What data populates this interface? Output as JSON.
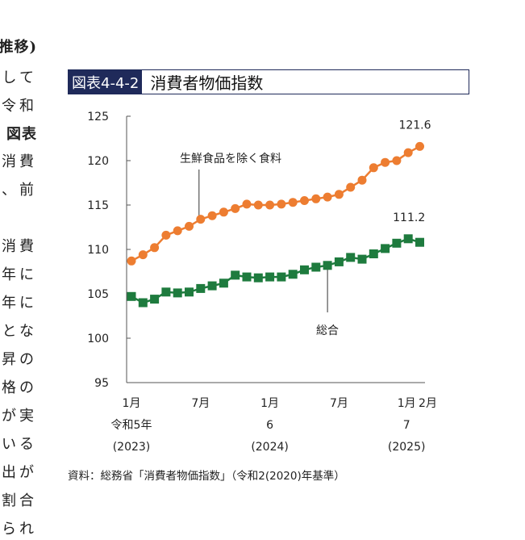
{
  "body_text_fragments": [
    "推移)",
    "して",
    "令和",
    "図表",
    "消費",
    "、前",
    "消費",
    "年に",
    "年に",
    "とな",
    "昇の",
    "格の",
    "が実",
    "いる",
    "出が",
    "割合",
    "られ"
  ],
  "figure": {
    "label": "図表4-4-2",
    "title": "消費者物価指数",
    "source": "資料：総務省「消費者物価指数」（令和2(2020)年基準）"
  },
  "chart_data": {
    "type": "line",
    "title": "消費者物価指数",
    "xlabel": "",
    "ylabel": "",
    "ylim": [
      95,
      125
    ],
    "yticks": [
      95,
      100,
      105,
      110,
      115,
      120,
      125
    ],
    "x": [
      "2023-01",
      "2023-02",
      "2023-03",
      "2023-04",
      "2023-05",
      "2023-06",
      "2023-07",
      "2023-08",
      "2023-09",
      "2023-10",
      "2023-11",
      "2023-12",
      "2024-01",
      "2024-02",
      "2024-03",
      "2024-04",
      "2024-05",
      "2024-06",
      "2024-07",
      "2024-08",
      "2024-09",
      "2024-10",
      "2024-11",
      "2024-12",
      "2025-01",
      "2025-02"
    ],
    "xtick_labels": [
      {
        "x": "2023-01",
        "lines": [
          "1月",
          "令和5年",
          "(2023)"
        ]
      },
      {
        "x": "2023-07",
        "lines": [
          "7月"
        ]
      },
      {
        "x": "2024-01",
        "lines": [
          "1月",
          "6",
          "(2024)"
        ]
      },
      {
        "x": "2024-07",
        "lines": [
          "7月"
        ]
      },
      {
        "x": "2025-01",
        "lines": [
          "1月",
          "7",
          "(2025)"
        ]
      },
      {
        "x": "2025-02",
        "lines": [
          "2月"
        ]
      }
    ],
    "grid": false,
    "series": [
      {
        "name": "生鮮食品を除く食料",
        "color": "#ed7d31",
        "marker": "circle",
        "values": [
          108.7,
          109.4,
          110.2,
          111.6,
          112.1,
          112.6,
          113.4,
          113.8,
          114.2,
          114.6,
          115.1,
          115.0,
          115.0,
          115.1,
          115.3,
          115.5,
          115.7,
          115.9,
          116.2,
          117.0,
          117.8,
          119.2,
          119.8,
          120.0,
          120.9,
          121.6
        ],
        "annotation": "121.6"
      },
      {
        "name": "総合",
        "color": "#1e7b3e",
        "marker": "square",
        "values": [
          104.7,
          104.0,
          104.4,
          105.2,
          105.1,
          105.2,
          105.6,
          105.9,
          106.2,
          107.1,
          106.9,
          106.8,
          106.9,
          106.9,
          107.2,
          107.7,
          108.0,
          108.2,
          108.6,
          109.1,
          108.9,
          109.5,
          110.1,
          110.7,
          111.2,
          110.8
        ],
        "annotation": "111.2"
      }
    ]
  }
}
